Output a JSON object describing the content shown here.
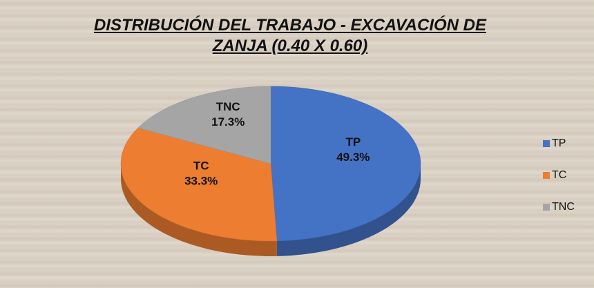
{
  "chart_data": {
    "type": "pie3d",
    "title": "DISTRIBUCIÓN DEL TRABAJO - EXCAVACIÓN DE ZANJA (0.40 X 0.60)",
    "categories": [
      "TP",
      "TC",
      "TNC"
    ],
    "values": [
      49.3,
      33.3,
      17.3
    ],
    "value_labels": [
      "49.3%",
      "33.3%",
      "17.3%"
    ],
    "colors": [
      "#4472c4",
      "#ed7d31",
      "#a5a5a5"
    ],
    "legend": "right"
  }
}
